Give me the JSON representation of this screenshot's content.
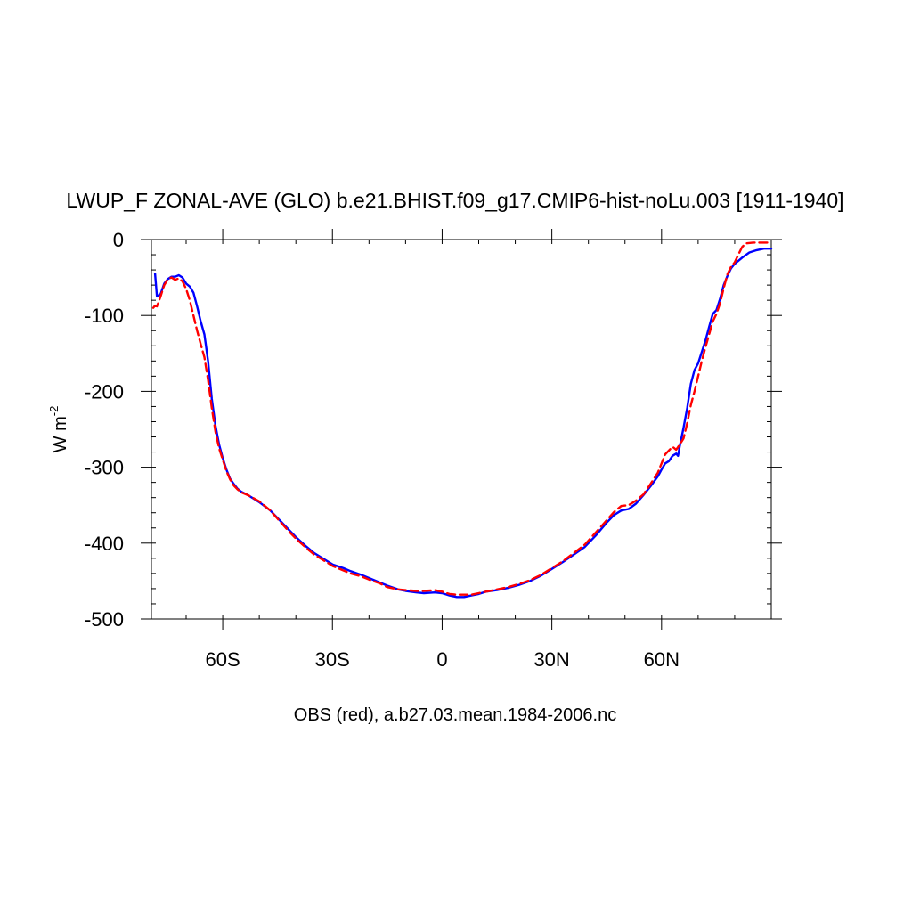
{
  "chart_data": {
    "type": "line",
    "title": "LWUP_F ZONAL-AVE (GLO) b.e21.BHIST.f09_g17.CMIP6-hist-noLu.003 [1911-1940]",
    "ylabel_base": "W m",
    "ylabel_exp": "-2",
    "caption": "OBS (red), a.b27.03.mean.1984-2006.nc",
    "xlim": [
      -79.5,
      90
    ],
    "ylim": [
      -500,
      0
    ],
    "x_ticks": [
      {
        "value": -60,
        "label": "60S"
      },
      {
        "value": -30,
        "label": "30S"
      },
      {
        "value": 0,
        "label": "0"
      },
      {
        "value": 30,
        "label": "30N"
      },
      {
        "value": 60,
        "label": "60N"
      }
    ],
    "y_ticks": [
      {
        "value": 0,
        "label": "0"
      },
      {
        "value": -100,
        "label": "-100"
      },
      {
        "value": -200,
        "label": "-200"
      },
      {
        "value": -300,
        "label": "-300"
      },
      {
        "value": -400,
        "label": "-400"
      },
      {
        "value": -500,
        "label": "-500"
      }
    ],
    "series": [
      {
        "color": "#0000ff",
        "style": "solid",
        "points": [
          [
            -78.5,
            -45
          ],
          [
            -78,
            -75
          ],
          [
            -77,
            -72
          ],
          [
            -76,
            -58
          ],
          [
            -75,
            -52
          ],
          [
            -74,
            -49
          ],
          [
            -73,
            -49
          ],
          [
            -72,
            -47
          ],
          [
            -71,
            -50
          ],
          [
            -70,
            -58
          ],
          [
            -69,
            -62
          ],
          [
            -68,
            -70
          ],
          [
            -67,
            -88
          ],
          [
            -66,
            -108
          ],
          [
            -65,
            -125
          ],
          [
            -64,
            -160
          ],
          [
            -63,
            -210
          ],
          [
            -62,
            -245
          ],
          [
            -61,
            -270
          ],
          [
            -60,
            -288
          ],
          [
            -59,
            -303
          ],
          [
            -58,
            -315
          ],
          [
            -57,
            -322
          ],
          [
            -56,
            -328
          ],
          [
            -55,
            -332
          ],
          [
            -53,
            -337
          ],
          [
            -50,
            -346
          ],
          [
            -47,
            -357
          ],
          [
            -45,
            -367
          ],
          [
            -42,
            -382
          ],
          [
            -40,
            -392
          ],
          [
            -37,
            -405
          ],
          [
            -35,
            -413
          ],
          [
            -32,
            -422
          ],
          [
            -30,
            -428
          ],
          [
            -27,
            -433
          ],
          [
            -25,
            -437
          ],
          [
            -22,
            -442
          ],
          [
            -20,
            -446
          ],
          [
            -17,
            -452
          ],
          [
            -15,
            -456
          ],
          [
            -12,
            -461
          ],
          [
            -10,
            -463
          ],
          [
            -7,
            -465
          ],
          [
            -5,
            -466
          ],
          [
            -2,
            -465
          ],
          [
            0,
            -466
          ],
          [
            2,
            -469
          ],
          [
            4,
            -471
          ],
          [
            6,
            -471
          ],
          [
            8,
            -469
          ],
          [
            10,
            -467
          ],
          [
            12,
            -464
          ],
          [
            15,
            -462
          ],
          [
            18,
            -459
          ],
          [
            21,
            -455
          ],
          [
            24,
            -450
          ],
          [
            27,
            -443
          ],
          [
            30,
            -434
          ],
          [
            33,
            -425
          ],
          [
            36,
            -415
          ],
          [
            39,
            -405
          ],
          [
            42,
            -390
          ],
          [
            45,
            -373
          ],
          [
            47,
            -363
          ],
          [
            49,
            -357
          ],
          [
            51,
            -355
          ],
          [
            53,
            -348
          ],
          [
            55,
            -337
          ],
          [
            57,
            -325
          ],
          [
            59,
            -312
          ],
          [
            60,
            -303
          ],
          [
            61,
            -295
          ],
          [
            62,
            -292
          ],
          [
            63,
            -285
          ],
          [
            64,
            -282
          ],
          [
            64.5,
            -285
          ],
          [
            65,
            -272
          ],
          [
            66,
            -248
          ],
          [
            67,
            -222
          ],
          [
            68,
            -190
          ],
          [
            69,
            -172
          ],
          [
            70,
            -163
          ],
          [
            71,
            -148
          ],
          [
            72,
            -133
          ],
          [
            73,
            -115
          ],
          [
            74,
            -98
          ],
          [
            75,
            -93
          ],
          [
            76,
            -78
          ],
          [
            77,
            -60
          ],
          [
            78,
            -48
          ],
          [
            79,
            -38
          ],
          [
            80,
            -32
          ],
          [
            82,
            -24
          ],
          [
            84,
            -17
          ],
          [
            86,
            -14
          ],
          [
            88,
            -12
          ],
          [
            90,
            -12
          ]
        ]
      },
      {
        "color": "#ff0000",
        "style": "dashed",
        "points": [
          [
            -79,
            -90
          ],
          [
            -78.5,
            -87
          ],
          [
            -78,
            -88
          ],
          [
            -77,
            -75
          ],
          [
            -76,
            -60
          ],
          [
            -75,
            -52
          ],
          [
            -74,
            -50
          ],
          [
            -73,
            -53
          ],
          [
            -72,
            -51
          ],
          [
            -71,
            -55
          ],
          [
            -70,
            -65
          ],
          [
            -69,
            -80
          ],
          [
            -68,
            -100
          ],
          [
            -67,
            -120
          ],
          [
            -66,
            -138
          ],
          [
            -65,
            -155
          ],
          [
            -64,
            -185
          ],
          [
            -63,
            -222
          ],
          [
            -62,
            -253
          ],
          [
            -61,
            -275
          ],
          [
            -60,
            -290
          ],
          [
            -59,
            -305
          ],
          [
            -58,
            -316
          ],
          [
            -57,
            -324
          ],
          [
            -56,
            -329
          ],
          [
            -55,
            -333
          ],
          [
            -53,
            -337
          ],
          [
            -50,
            -345
          ],
          [
            -47,
            -357
          ],
          [
            -45,
            -368
          ],
          [
            -42,
            -384
          ],
          [
            -40,
            -394
          ],
          [
            -37,
            -407
          ],
          [
            -35,
            -415
          ],
          [
            -32,
            -424
          ],
          [
            -30,
            -430
          ],
          [
            -27,
            -436
          ],
          [
            -25,
            -440
          ],
          [
            -22,
            -444
          ],
          [
            -20,
            -448
          ],
          [
            -17,
            -453
          ],
          [
            -15,
            -458
          ],
          [
            -12,
            -461
          ],
          [
            -10,
            -462
          ],
          [
            -7,
            -463
          ],
          [
            -5,
            -463
          ],
          [
            -2,
            -462
          ],
          [
            0,
            -464
          ],
          [
            2,
            -467
          ],
          [
            4,
            -468
          ],
          [
            6,
            -468
          ],
          [
            8,
            -468
          ],
          [
            10,
            -466
          ],
          [
            12,
            -464
          ],
          [
            15,
            -461
          ],
          [
            18,
            -458
          ],
          [
            21,
            -454
          ],
          [
            24,
            -449
          ],
          [
            27,
            -442
          ],
          [
            30,
            -433
          ],
          [
            33,
            -424
          ],
          [
            36,
            -413
          ],
          [
            39,
            -402
          ],
          [
            42,
            -386
          ],
          [
            45,
            -370
          ],
          [
            47,
            -359
          ],
          [
            49,
            -351
          ],
          [
            51,
            -350
          ],
          [
            53,
            -344
          ],
          [
            55,
            -336
          ],
          [
            57,
            -322
          ],
          [
            59,
            -307
          ],
          [
            60,
            -295
          ],
          [
            61,
            -283
          ],
          [
            62,
            -278
          ],
          [
            63,
            -273
          ],
          [
            64,
            -277
          ],
          [
            65,
            -270
          ],
          [
            66,
            -262
          ],
          [
            67,
            -242
          ],
          [
            68,
            -218
          ],
          [
            69,
            -200
          ],
          [
            70,
            -180
          ],
          [
            71,
            -160
          ],
          [
            72,
            -142
          ],
          [
            73,
            -125
          ],
          [
            74,
            -108
          ],
          [
            75,
            -98
          ],
          [
            76,
            -84
          ],
          [
            77,
            -64
          ],
          [
            78,
            -46
          ],
          [
            79,
            -36
          ],
          [
            80,
            -30
          ],
          [
            81,
            -20
          ],
          [
            82,
            -10
          ],
          [
            83,
            -5
          ],
          [
            85,
            -4
          ],
          [
            87,
            -4
          ],
          [
            89,
            -4
          ],
          [
            90,
            -4
          ]
        ]
      }
    ]
  }
}
